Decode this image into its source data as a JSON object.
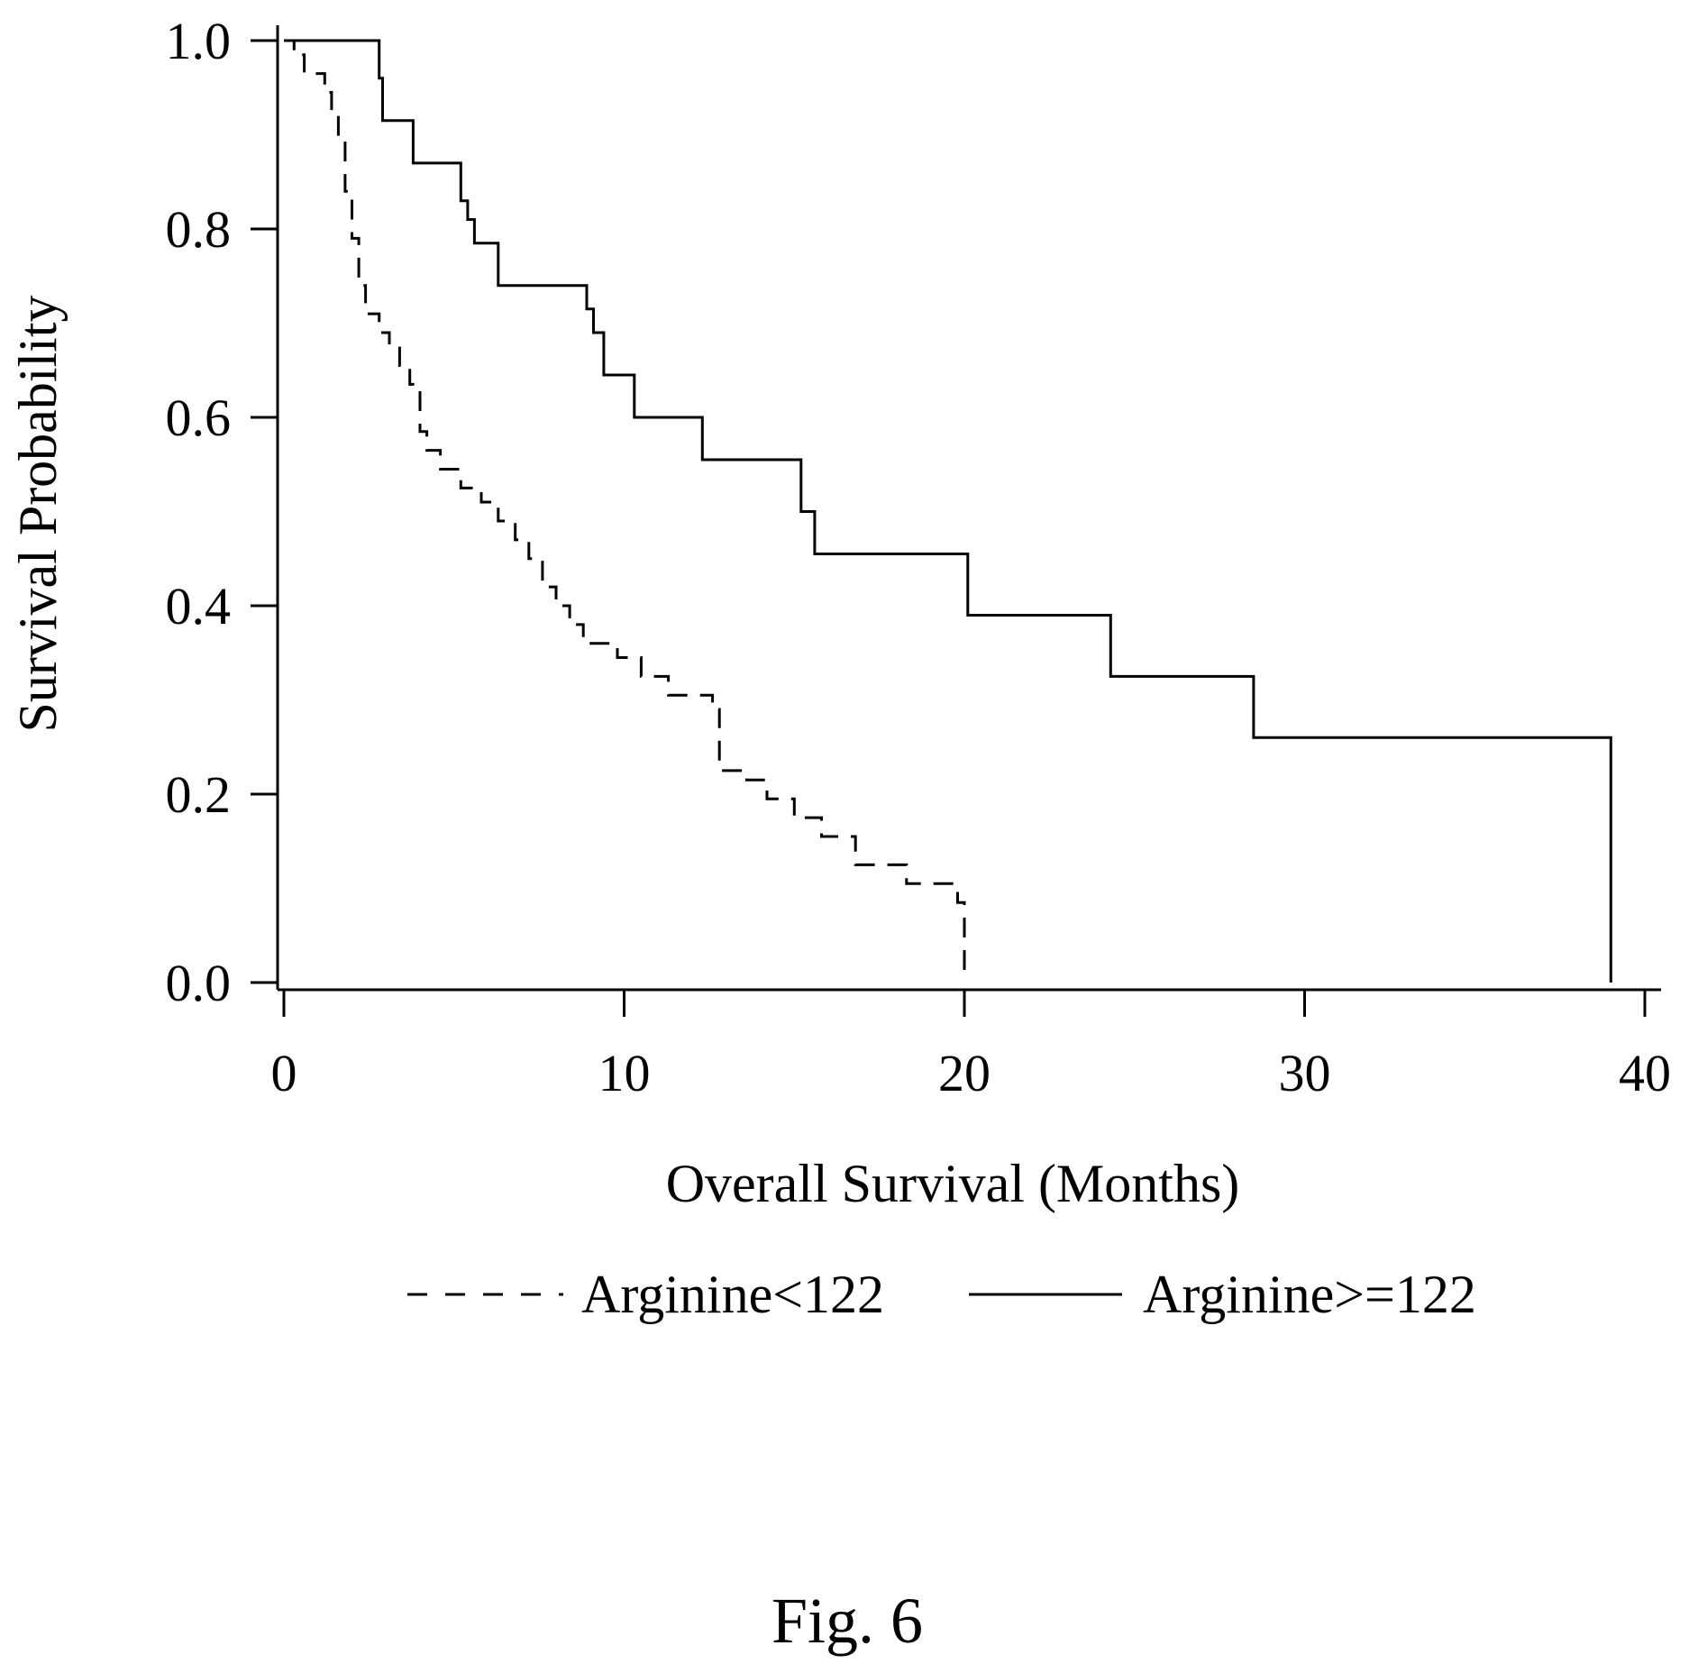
{
  "chart_data": {
    "type": "line",
    "title": "",
    "xlabel": "Overall Survival (Months)",
    "ylabel": "Survival Probability",
    "xlim": [
      0,
      40
    ],
    "ylim": [
      0,
      1
    ],
    "x_ticks": [
      "0",
      "10",
      "20",
      "30",
      "40"
    ],
    "y_ticks": [
      "0.0",
      "0.2",
      "0.4",
      "0.6",
      "0.8",
      "1.0"
    ],
    "grid": false,
    "legend_position": "bottom",
    "step": "post",
    "series": [
      {
        "name": "Arginine<122",
        "style": "dashed",
        "color": "#000000",
        "x": [
          0,
          0.3,
          0.6,
          1.2,
          1.4,
          1.6,
          1.8,
          2.0,
          2.2,
          2.4,
          2.8,
          3.1,
          3.4,
          3.7,
          4.0,
          4.2,
          4.6,
          5.2,
          5.8,
          6.3,
          6.8,
          7.2,
          7.6,
          8.0,
          8.4,
          8.8,
          9.8,
          10.5,
          11.3,
          12.6,
          12.8,
          13.6,
          14.2,
          15.0,
          15.8,
          16.8,
          18.3,
          19.8,
          20.0
        ],
        "y": [
          1.0,
          0.985,
          0.965,
          0.945,
          0.925,
          0.895,
          0.84,
          0.79,
          0.74,
          0.71,
          0.69,
          0.675,
          0.655,
          0.635,
          0.585,
          0.565,
          0.545,
          0.525,
          0.51,
          0.49,
          0.47,
          0.45,
          0.42,
          0.4,
          0.38,
          0.36,
          0.345,
          0.325,
          0.305,
          0.29,
          0.225,
          0.215,
          0.195,
          0.175,
          0.155,
          0.125,
          0.105,
          0.085,
          0.0
        ]
      },
      {
        "name": "Arginine>=122",
        "style": "solid",
        "color": "#000000",
        "x": [
          0,
          2.8,
          2.9,
          3.8,
          5.2,
          5.4,
          5.6,
          6.3,
          8.9,
          9.1,
          9.4,
          10.3,
          12.3,
          15.2,
          15.6,
          20.1,
          24.3,
          28.5,
          39.0
        ],
        "y": [
          1.0,
          0.96,
          0.915,
          0.87,
          0.83,
          0.81,
          0.785,
          0.74,
          0.715,
          0.69,
          0.645,
          0.6,
          0.555,
          0.5,
          0.455,
          0.39,
          0.325,
          0.26,
          0.0
        ]
      }
    ]
  },
  "caption": "Fig. 6"
}
